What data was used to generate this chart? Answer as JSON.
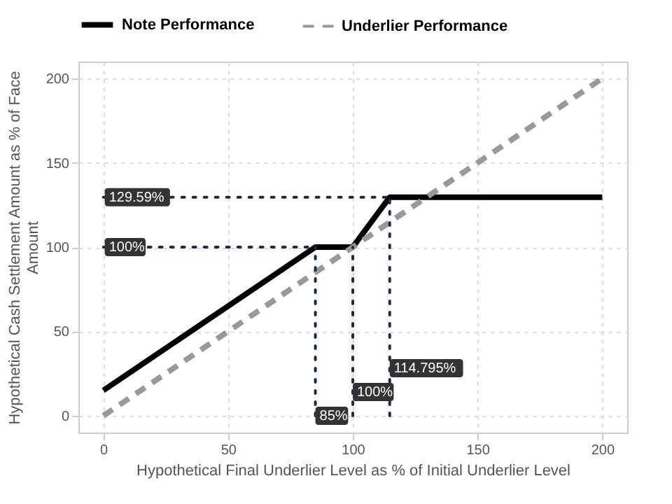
{
  "chart_data": {
    "type": "line",
    "xlabel": "Hypothetical Final Underlier Level as % of Initial Underlier Level",
    "ylabel": "Hypothetical Cash Settlement Amount as % of Face Amount",
    "series": [
      {
        "name": "Note Performance",
        "color": "#000000",
        "line_style": "solid",
        "x": [
          0,
          85,
          100,
          114.795,
          200
        ],
        "values": [
          15,
          100,
          100,
          129.59,
          129.59
        ]
      },
      {
        "name": "Underlier Performance",
        "color": "#999999",
        "line_style": "dashed",
        "x": [
          0,
          200
        ],
        "values": [
          0,
          200
        ]
      }
    ],
    "xlim": [
      -10,
      210
    ],
    "ylim": [
      -10,
      210
    ],
    "xticks": [
      0,
      50,
      100,
      150,
      200
    ],
    "yticks": [
      0,
      50,
      100,
      150,
      200
    ],
    "ref_lines": [
      {
        "axis": "y",
        "value": 129.59,
        "label": "129.59%",
        "color": "#1f2a44",
        "line_style": "dotted"
      },
      {
        "axis": "y",
        "value": 100,
        "label": "100%",
        "color": "#1f2a44",
        "line_style": "dotted"
      },
      {
        "axis": "x",
        "value": 85,
        "label": "85%",
        "color": "#1f2a44",
        "line_style": "dotted"
      },
      {
        "axis": "x",
        "value": 100,
        "label": "100%",
        "color": "#1f2a44",
        "line_style": "dotted"
      },
      {
        "axis": "x",
        "value": 114.795,
        "label": "114.795%",
        "color": "#1f2a44",
        "line_style": "dotted"
      }
    ],
    "grid": true,
    "legend": "top"
  }
}
